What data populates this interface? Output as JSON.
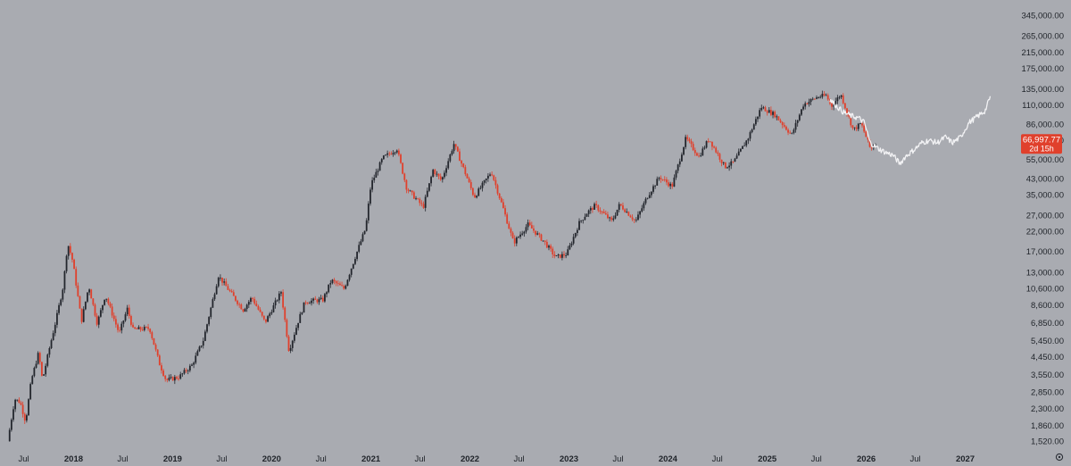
{
  "colors": {
    "background": "#a9abb1",
    "up": "#23262d",
    "down": "#e0402c",
    "projection": "#f2f2f4",
    "price_badge": "#e0402c",
    "axis_text": "#1f2329"
  },
  "price_badge": {
    "price": "66,997.77",
    "countdown": "2d 15h",
    "value": 66997.77
  },
  "settings_icon": "gear-icon",
  "chart_data": {
    "type": "candlestick",
    "title": "",
    "xlabel": "",
    "ylabel": "",
    "scale": "log",
    "ylim": [
      1300,
      400000
    ],
    "grid": false,
    "y_ticks": [
      {
        "value": 345000,
        "label": "345,000.00"
      },
      {
        "value": 265000,
        "label": "265,000.00"
      },
      {
        "value": 215000,
        "label": "215,000.00"
      },
      {
        "value": 175000,
        "label": "175,000.00"
      },
      {
        "value": 135000,
        "label": "135,000.00"
      },
      {
        "value": 110000,
        "label": "110,000.00"
      },
      {
        "value": 86000,
        "label": "86,000.00"
      },
      {
        "value": 70000,
        "label": "70,000.00"
      },
      {
        "value": 55000,
        "label": "55,000.00"
      },
      {
        "value": 43000,
        "label": "43,000.00"
      },
      {
        "value": 35000,
        "label": "35,000.00"
      },
      {
        "value": 27000,
        "label": "27,000.00"
      },
      {
        "value": 22000,
        "label": "22,000.00"
      },
      {
        "value": 17000,
        "label": "17,000.00"
      },
      {
        "value": 13000,
        "label": "13,000.00"
      },
      {
        "value": 10600,
        "label": "10,600.00"
      },
      {
        "value": 8600,
        "label": "8,600.00"
      },
      {
        "value": 6850,
        "label": "6,850.00"
      },
      {
        "value": 5450,
        "label": "5,450.00"
      },
      {
        "value": 4450,
        "label": "4,450.00"
      },
      {
        "value": 3550,
        "label": "3,550.00"
      },
      {
        "value": 2850,
        "label": "2,850.00"
      },
      {
        "value": 2300,
        "label": "2,300.00"
      },
      {
        "value": 1860,
        "label": "1,860.00"
      },
      {
        "value": 1520,
        "label": "1,520.00"
      }
    ],
    "x_range": [
      "2017-05-01",
      "2027-05-01"
    ],
    "x_ticks": [
      {
        "date": "2017-07-01",
        "label": "Jul",
        "year": false
      },
      {
        "date": "2018-01-01",
        "label": "2018",
        "year": true
      },
      {
        "date": "2018-07-01",
        "label": "Jul",
        "year": false
      },
      {
        "date": "2019-01-01",
        "label": "2019",
        "year": true
      },
      {
        "date": "2019-07-01",
        "label": "Jul",
        "year": false
      },
      {
        "date": "2020-01-01",
        "label": "2020",
        "year": true
      },
      {
        "date": "2020-07-01",
        "label": "Jul",
        "year": false
      },
      {
        "date": "2021-01-01",
        "label": "2021",
        "year": true
      },
      {
        "date": "2021-07-01",
        "label": "Jul",
        "year": false
      },
      {
        "date": "2022-01-01",
        "label": "2022",
        "year": true
      },
      {
        "date": "2022-07-01",
        "label": "Jul",
        "year": false
      },
      {
        "date": "2023-01-01",
        "label": "2023",
        "year": true
      },
      {
        "date": "2023-07-01",
        "label": "Jul",
        "year": false
      },
      {
        "date": "2024-01-01",
        "label": "2024",
        "year": true
      },
      {
        "date": "2024-07-01",
        "label": "Jul",
        "year": false
      },
      {
        "date": "2025-01-01",
        "label": "2025",
        "year": true
      },
      {
        "date": "2025-07-01",
        "label": "Jul",
        "year": false
      },
      {
        "date": "2026-01-01",
        "label": "2026",
        "year": true
      },
      {
        "date": "2026-07-01",
        "label": "Jul",
        "year": false
      },
      {
        "date": "2027-01-01",
        "label": "2027",
        "year": true
      }
    ],
    "price_path": [
      [
        "2017-05-10",
        1520
      ],
      [
        "2017-06-05",
        2600
      ],
      [
        "2017-06-25",
        2500
      ],
      [
        "2017-07-15",
        1950
      ],
      [
        "2017-08-05",
        3300
      ],
      [
        "2017-09-01",
        4700
      ],
      [
        "2017-09-15",
        3300
      ],
      [
        "2017-10-10",
        4900
      ],
      [
        "2017-11-05",
        7200
      ],
      [
        "2017-12-01",
        11000
      ],
      [
        "2017-12-17",
        19000
      ],
      [
        "2018-01-05",
        15000
      ],
      [
        "2018-02-06",
        7000
      ],
      [
        "2018-03-05",
        11000
      ],
      [
        "2018-04-05",
        6800
      ],
      [
        "2018-05-05",
        9800
      ],
      [
        "2018-06-25",
        6000
      ],
      [
        "2018-07-25",
        8200
      ],
      [
        "2018-08-15",
        6300
      ],
      [
        "2018-10-15",
        6400
      ],
      [
        "2018-11-20",
        4100
      ],
      [
        "2018-12-15",
        3300
      ],
      [
        "2019-02-01",
        3450
      ],
      [
        "2019-03-20",
        4000
      ],
      [
        "2019-05-01",
        5500
      ],
      [
        "2019-06-26",
        12500
      ],
      [
        "2019-08-01",
        10500
      ],
      [
        "2019-09-25",
        8100
      ],
      [
        "2019-10-27",
        9500
      ],
      [
        "2019-12-15",
        6900
      ],
      [
        "2020-02-12",
        10200
      ],
      [
        "2020-03-12",
        4800
      ],
      [
        "2020-04-15",
        7000
      ],
      [
        "2020-05-10",
        9000
      ],
      [
        "2020-07-15",
        9200
      ],
      [
        "2020-08-15",
        11800
      ],
      [
        "2020-10-01",
        10600
      ],
      [
        "2020-11-15",
        16500
      ],
      [
        "2020-12-20",
        23000
      ],
      [
        "2021-01-08",
        40000
      ],
      [
        "2021-02-21",
        56000
      ],
      [
        "2021-04-14",
        63000
      ],
      [
        "2021-05-20",
        38000
      ],
      [
        "2021-07-20",
        30000
      ],
      [
        "2021-08-25",
        48000
      ],
      [
        "2021-09-25",
        42000
      ],
      [
        "2021-11-10",
        67000
      ],
      [
        "2021-12-20",
        47000
      ],
      [
        "2022-01-24",
        34000
      ],
      [
        "2022-03-28",
        47000
      ],
      [
        "2022-05-12",
        29000
      ],
      [
        "2022-06-18",
        19000
      ],
      [
        "2022-08-10",
        24000
      ],
      [
        "2022-10-10",
        19200
      ],
      [
        "2022-11-20",
        15800
      ],
      [
        "2022-12-31",
        16500
      ],
      [
        "2023-02-15",
        24500
      ],
      [
        "2023-03-17",
        28000
      ],
      [
        "2023-04-14",
        30500
      ],
      [
        "2023-06-15",
        25000
      ],
      [
        "2023-07-14",
        31000
      ],
      [
        "2023-09-11",
        25000
      ],
      [
        "2023-10-25",
        34500
      ],
      [
        "2023-12-08",
        44000
      ],
      [
        "2024-01-23",
        39000
      ],
      [
        "2024-03-14",
        72000
      ],
      [
        "2024-05-01",
        57000
      ],
      [
        "2024-06-07",
        71500
      ],
      [
        "2024-08-05",
        50000
      ],
      [
        "2024-09-06",
        53000
      ],
      [
        "2024-10-29",
        72000
      ],
      [
        "2024-12-17",
        107000
      ],
      [
        "2025-02-05",
        97000
      ],
      [
        "2025-04-08",
        75000
      ],
      [
        "2025-05-22",
        111000
      ],
      [
        "2025-07-14",
        122000
      ],
      [
        "2025-08-14",
        124000
      ],
      [
        "2025-09-01",
        108000
      ],
      [
        "2025-10-06",
        126000
      ],
      [
        "2025-11-21",
        80000
      ],
      [
        "2025-12-20",
        87000
      ],
      [
        "2026-01-25",
        62000
      ],
      [
        "2026-02-05",
        66997.77
      ]
    ],
    "projection_path": [
      [
        "2025-08-20",
        118000
      ],
      [
        "2025-09-15",
        108000
      ],
      [
        "2025-10-10",
        100000
      ],
      [
        "2025-11-05",
        96000
      ],
      [
        "2025-12-05",
        93000
      ],
      [
        "2025-12-25",
        88000
      ],
      [
        "2026-01-15",
        68000
      ],
      [
        "2026-02-15",
        63000
      ],
      [
        "2026-03-15",
        60000
      ],
      [
        "2026-04-10",
        58000
      ],
      [
        "2026-05-05",
        52000
      ],
      [
        "2026-05-25",
        57000
      ],
      [
        "2026-07-01",
        63000
      ],
      [
        "2026-07-25",
        68000
      ],
      [
        "2026-08-20",
        70000
      ],
      [
        "2026-09-20",
        68000
      ],
      [
        "2026-10-20",
        73000
      ],
      [
        "2026-11-15",
        68000
      ],
      [
        "2026-12-15",
        73000
      ],
      [
        "2027-01-15",
        88000
      ],
      [
        "2027-02-15",
        95000
      ],
      [
        "2027-03-15",
        102000
      ],
      [
        "2027-04-05",
        124000
      ]
    ]
  }
}
